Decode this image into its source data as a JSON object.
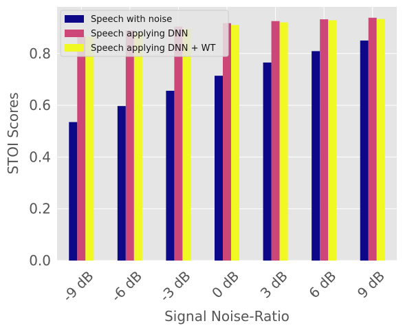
{
  "chart_data": {
    "type": "bar",
    "title": "",
    "xlabel": "Signal Noise-Ratio",
    "ylabel": "STOI Scores",
    "categories": [
      "-9 dB",
      "-6 dB",
      "-3 dB",
      "0 dB",
      "3 dB",
      "6 dB",
      "9 dB"
    ],
    "ylim": [
      0,
      0.98
    ],
    "yticks": [
      0.0,
      0.2,
      0.4,
      0.6,
      0.8
    ],
    "ytick_labels": [
      "0.0",
      "0.2",
      "0.4",
      "0.6",
      "0.8"
    ],
    "grid": true,
    "legend_position": "top-left",
    "series": [
      {
        "name": "Speech with noise",
        "color": "#0d0887",
        "values": [
          0.535,
          0.597,
          0.656,
          0.714,
          0.765,
          0.809,
          0.85
        ]
      },
      {
        "name": "Speech applying DNN",
        "color": "#cc4778",
        "values": [
          0.868,
          0.889,
          0.904,
          0.917,
          0.925,
          0.932,
          0.938
        ]
      },
      {
        "name": "Speech applying DNN + WT",
        "color": "#f0f921",
        "values": [
          0.865,
          0.88,
          0.895,
          0.91,
          0.92,
          0.928,
          0.933
        ]
      }
    ]
  }
}
